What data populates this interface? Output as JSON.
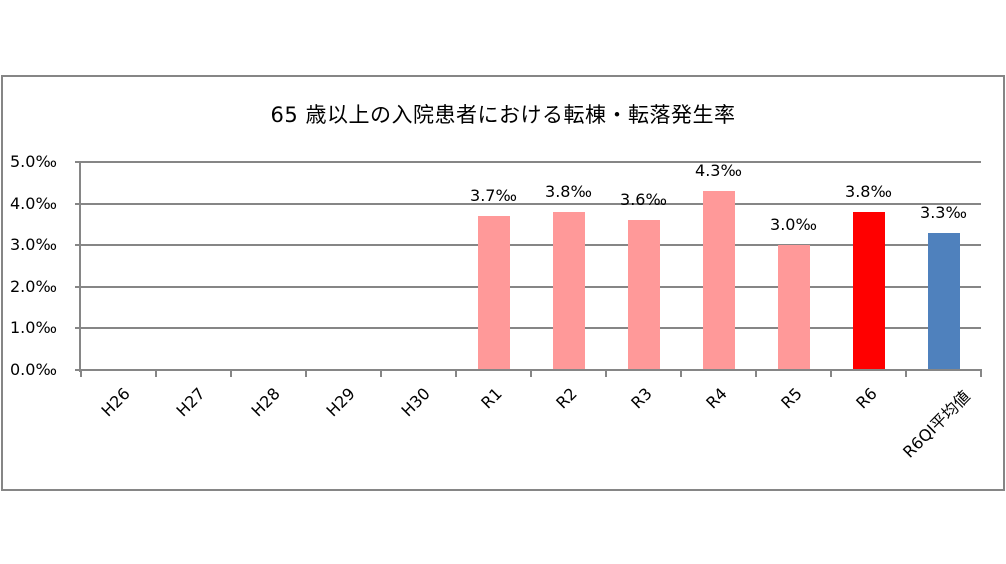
{
  "chart_data": {
    "type": "bar",
    "title": "65 歳以上の入院患者における転棟・転落発生率",
    "xlabel": "",
    "ylabel": "",
    "ylim": [
      0,
      5.0
    ],
    "yticks": [
      "0.0‰",
      "1.0‰",
      "2.0‰",
      "3.0‰",
      "4.0‰",
      "5.0‰"
    ],
    "grid": true,
    "legend": null,
    "categories": [
      "H26",
      "H27",
      "H28",
      "H29",
      "H30",
      "R1",
      "R2",
      "R3",
      "R4",
      "R5",
      "R6",
      "R6QI平均値"
    ],
    "values": [
      null,
      null,
      null,
      null,
      null,
      3.7,
      3.8,
      3.6,
      4.3,
      3.0,
      3.8,
      3.3
    ],
    "value_labels": [
      "",
      "",
      "",
      "",
      "",
      "3.7‰",
      "3.8‰",
      "3.6‰",
      "4.3‰",
      "3.0‰",
      "3.8‰",
      "3.3‰"
    ],
    "unit": "‰",
    "colors": {
      "past_years": "#ff9999",
      "current_year": "#ff0000",
      "qi_average": "#4f81bd",
      "axis": "#868686"
    },
    "bar_colors": [
      "#ff9999",
      "#ff9999",
      "#ff9999",
      "#ff9999",
      "#ff9999",
      "#ff9999",
      "#ff9999",
      "#ff9999",
      "#ff9999",
      "#ff9999",
      "#ff0000",
      "#4f81bd"
    ]
  }
}
